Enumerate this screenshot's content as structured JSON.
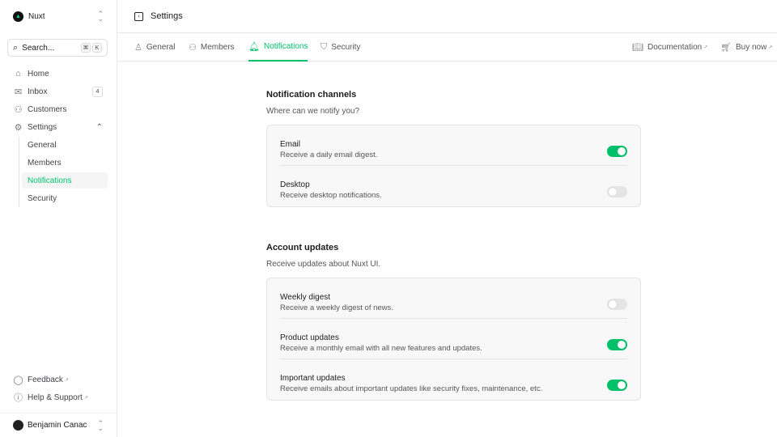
{
  "sidebar": {
    "team": "Nuxt",
    "search": {
      "placeholder": "Search...",
      "kbd": [
        "⌘",
        "K"
      ]
    },
    "items": [
      {
        "label": "Home",
        "icon": "home-icon"
      },
      {
        "label": "Inbox",
        "icon": "inbox-icon",
        "badge": "4"
      },
      {
        "label": "Customers",
        "icon": "users-icon"
      },
      {
        "label": "Settings",
        "icon": "gear-icon"
      }
    ],
    "settings_children": [
      "General",
      "Members",
      "Notifications",
      "Security"
    ],
    "footer": [
      {
        "label": "Feedback",
        "icon": "message-icon"
      },
      {
        "label": "Help & Support",
        "icon": "info-icon"
      }
    ],
    "user": "Benjamin Canac"
  },
  "header": {
    "title": "Settings"
  },
  "tabs": [
    {
      "label": "General"
    },
    {
      "label": "Members"
    },
    {
      "label": "Notifications"
    },
    {
      "label": "Security"
    }
  ],
  "links": [
    {
      "label": "Documentation"
    },
    {
      "label": "Buy now"
    }
  ],
  "sections": [
    {
      "title": "Notification channels",
      "subtitle": "Where can we notify you?",
      "rows": [
        {
          "title": "Email",
          "desc": "Receive a daily email digest.",
          "on": true
        },
        {
          "title": "Desktop",
          "desc": "Receive desktop notifications.",
          "on": false
        }
      ]
    },
    {
      "title": "Account updates",
      "subtitle": "Receive updates about Nuxt UI.",
      "rows": [
        {
          "title": "Weekly digest",
          "desc": "Receive a weekly digest of news.",
          "on": false
        },
        {
          "title": "Product updates",
          "desc": "Receive a monthly email with all new features and updates.",
          "on": true
        },
        {
          "title": "Important updates",
          "desc": "Receive emails about important updates like security fixes, maintenance, etc.",
          "on": true
        }
      ]
    }
  ],
  "colors": {
    "accent": "#00c16a"
  }
}
